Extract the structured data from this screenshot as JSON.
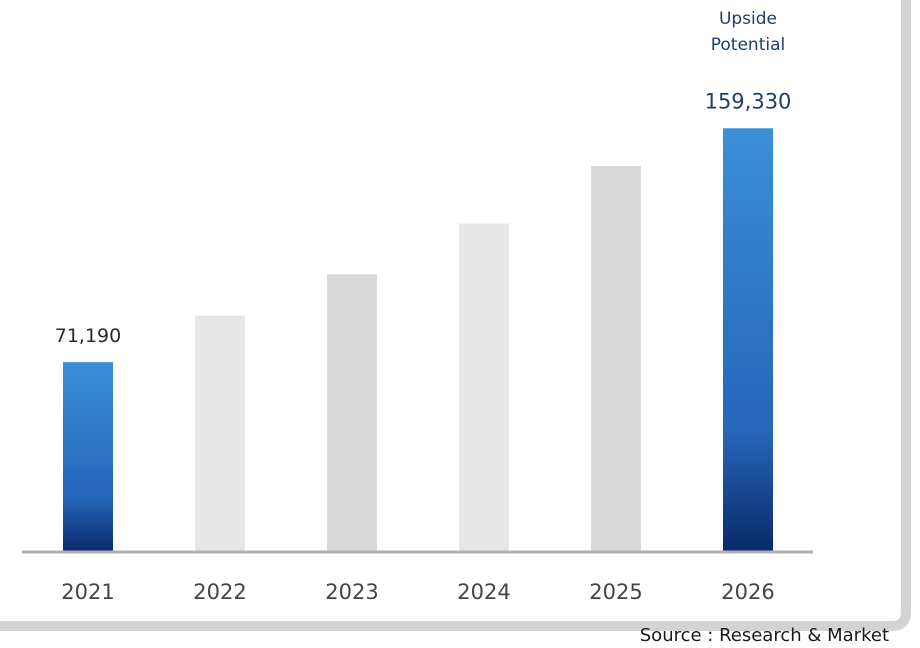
{
  "chart_data": {
    "type": "bar",
    "categories": [
      "2021",
      "2022",
      "2023",
      "2024",
      "2025",
      "2026"
    ],
    "values": [
      71190,
      88700,
      104300,
      123400,
      145100,
      159330
    ],
    "data_labels": [
      "71,190",
      "",
      "",
      "",
      "",
      "159,330"
    ],
    "highlighted": [
      true,
      false,
      false,
      false,
      false,
      true
    ],
    "annotation": "Upside\nPotential",
    "source": "Source : Research & Market",
    "ylim": [
      0,
      170000
    ],
    "colors": {
      "highlight_top": "#3a8fd6",
      "highlight_mid": "#2566b8",
      "highlight_bottom": "#0a2a6b",
      "muted_light": "#e6e6e6",
      "muted_dark": "#d9d9d9",
      "axis": "#b0b0b0",
      "label_dark": "#2a2a2a",
      "label_blue": "#1f3f6b",
      "frame": "#d3d3d3"
    }
  }
}
